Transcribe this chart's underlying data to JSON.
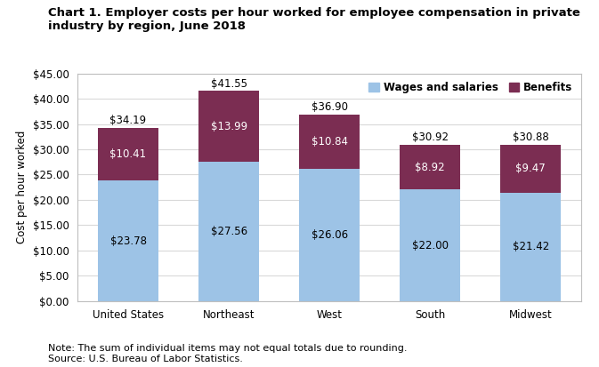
{
  "title_line1": "Chart 1. Employer costs per hour worked for employee compensation in private industry by region, June 2018",
  "ylabel": "Cost per hour worked",
  "ylim": [
    0,
    45
  ],
  "yticks": [
    0,
    5,
    10,
    15,
    20,
    25,
    30,
    35,
    40,
    45
  ],
  "ytick_labels": [
    "$0.00",
    "$5.00",
    "$10.00",
    "$15.00",
    "$20.00",
    "$25.00",
    "$30.00",
    "$35.00",
    "$40.00",
    "$45.00"
  ],
  "categories": [
    "United States",
    "Northeast",
    "West",
    "South",
    "Midwest"
  ],
  "wages": [
    23.78,
    27.56,
    26.06,
    22.0,
    21.42
  ],
  "benefits": [
    10.41,
    13.99,
    10.84,
    8.92,
    9.47
  ],
  "totals": [
    34.19,
    41.55,
    36.9,
    30.92,
    30.88
  ],
  "wages_color": "#9DC3E6",
  "benefits_color": "#7B2D52",
  "wages_label": "Wages and salaries",
  "benefits_label": "Benefits",
  "note": "Note: The sum of individual items may not equal totals due to rounding.",
  "source": "Source: U.S. Bureau of Labor Statistics.",
  "title_fontsize": 9.5,
  "label_fontsize": 8.5,
  "tick_fontsize": 8.5,
  "note_fontsize": 8,
  "bar_width": 0.6,
  "background_color": "#ffffff",
  "grid_color": "#d9d9d9",
  "spine_color": "#bfbfbf",
  "title_color": "#000000",
  "note_color": "#000000"
}
